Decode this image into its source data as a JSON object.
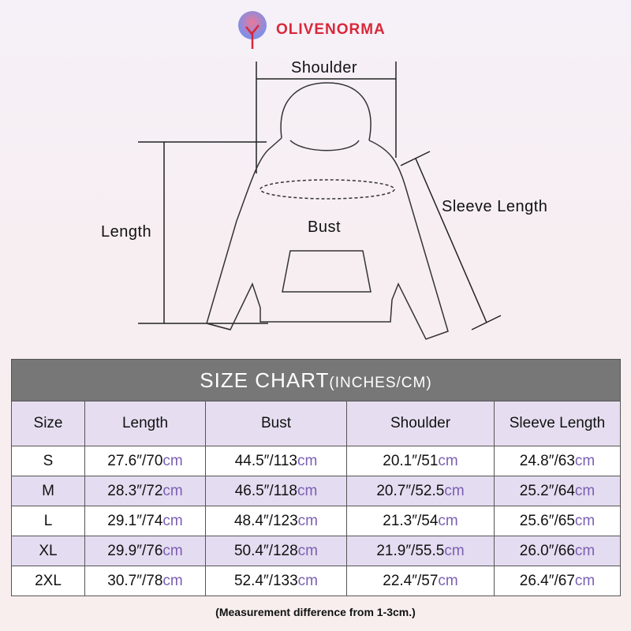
{
  "brand": {
    "name": "OLIVENORMA"
  },
  "diagram": {
    "shoulder": "Shoulder",
    "length": "Length",
    "bust": "Bust",
    "sleeve_length": "Sleeve Length"
  },
  "chart": {
    "title": "SIZE CHART",
    "title_unit": "(INCHES/CM)",
    "columns": [
      "Size",
      "Length",
      "Bust",
      "Shoulder",
      "Sleeve Length"
    ],
    "unit_label": "cm",
    "rows": [
      {
        "size": "S",
        "cells": [
          "27.6″/70",
          "44.5″/113",
          "20.1″/51",
          "24.8″/63"
        ]
      },
      {
        "size": "M",
        "cells": [
          "28.3″/72",
          "46.5″/118",
          "20.7″/52.5",
          "25.2″/64"
        ]
      },
      {
        "size": "L",
        "cells": [
          "29.1″/74",
          "48.4″/123",
          "21.3″/54",
          "25.6″/65"
        ]
      },
      {
        "size": "XL",
        "cells": [
          "29.9″/76",
          "50.4″/128",
          "21.9″/55.5",
          "26.0″/66"
        ]
      },
      {
        "size": "2XL",
        "cells": [
          "30.7″/78",
          "52.4″/133",
          "22.4″/57",
          "26.4″/67"
        ]
      }
    ],
    "note": "(Measurement difference from 1-3cm.)"
  },
  "colors": {
    "brand": "#d8283a",
    "header_bg": "#777777",
    "stripe": "#e4dcf0",
    "cm_text": "#7b5fb3"
  }
}
